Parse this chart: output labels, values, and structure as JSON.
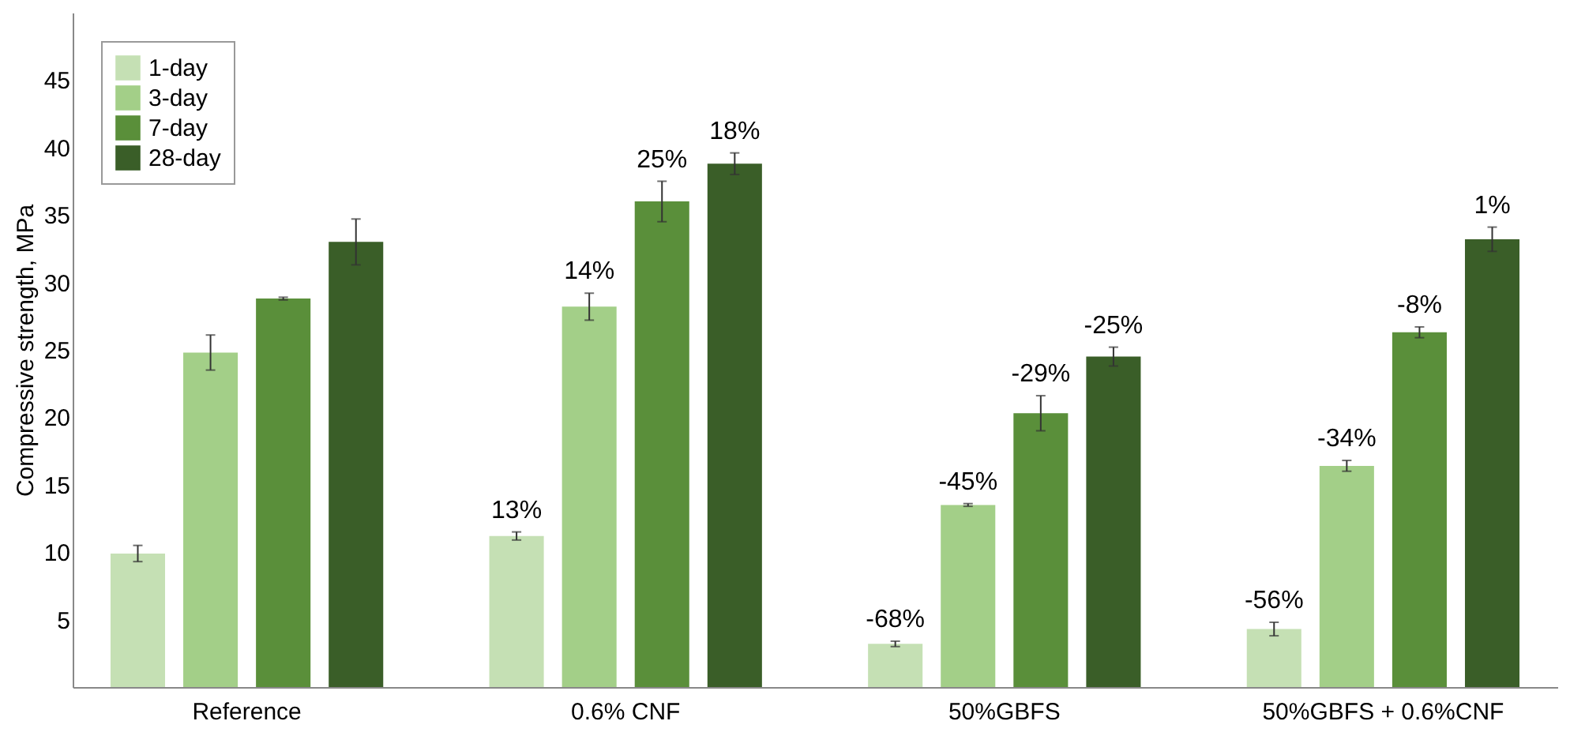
{
  "chart_data": {
    "type": "bar",
    "ylabel": "Compressive strength, MPa",
    "categories": [
      "Reference",
      "0.6% CNF",
      "50%GBFS",
      "50%GBFS + 0.6%CNF"
    ],
    "series": [
      {
        "name": "1-day",
        "color": "#c5e0b4",
        "values": [
          9.9,
          11.2,
          3.2,
          4.3
        ],
        "errors": [
          0.6,
          0.3,
          0.2,
          0.5
        ]
      },
      {
        "name": "3-day",
        "color": "#a3cf88",
        "values": [
          24.8,
          28.2,
          13.5,
          16.4
        ],
        "errors": [
          1.3,
          1.0,
          0.1,
          0.4
        ]
      },
      {
        "name": "7-day",
        "color": "#5a8f3a",
        "values": [
          28.8,
          36.0,
          20.3,
          26.3
        ],
        "errors": [
          0.1,
          1.5,
          1.3,
          0.4
        ]
      },
      {
        "name": "28-day",
        "color": "#3a5e28",
        "values": [
          33.0,
          38.8,
          24.5,
          33.2
        ],
        "errors": [
          1.7,
          0.8,
          0.7,
          0.9
        ]
      }
    ],
    "annotations": [
      "13%",
      "14%",
      "25%",
      "18%",
      "-68%",
      "-45%",
      "-29%",
      "-25%",
      "-56%",
      "-34%",
      "-8%",
      "1%"
    ],
    "ylim": [
      0,
      50
    ],
    "yticks": [
      5,
      10,
      15,
      20,
      25,
      30,
      35,
      40,
      45
    ],
    "grid": false,
    "legend": "top left"
  }
}
